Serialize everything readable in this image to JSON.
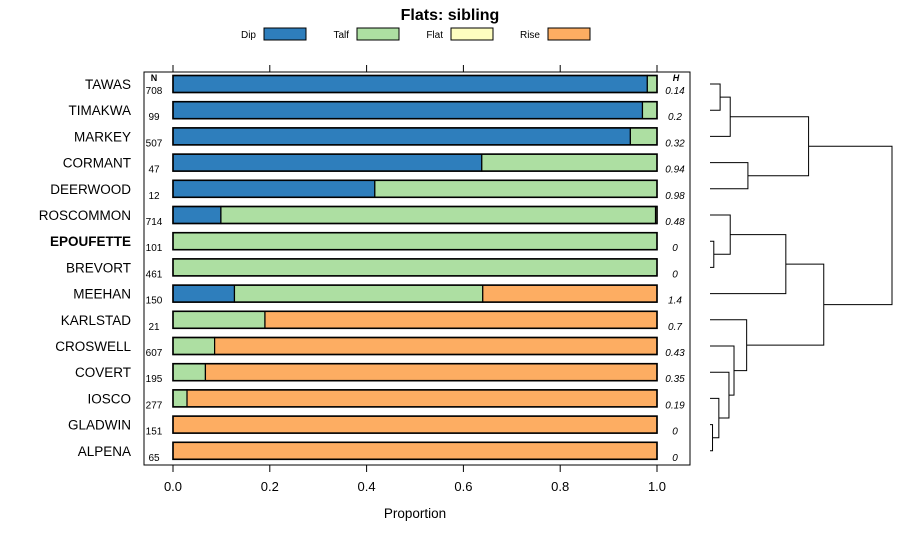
{
  "chart_data": {
    "type": "bar",
    "orientation": "horizontal",
    "stacked": true,
    "title": "Flats: sibling",
    "xlabel": "Proportion",
    "xlim": [
      0,
      1
    ],
    "x_ticks": [
      "0.0",
      "0.2",
      "0.4",
      "0.6",
      "0.8",
      "1.0"
    ],
    "n_header": "N",
    "h_header": "H",
    "legend": [
      {
        "name": "Dip",
        "color": "#2e7ebc"
      },
      {
        "name": "Talf",
        "color": "#addfa2"
      },
      {
        "name": "Flat",
        "color": "#fefec0"
      },
      {
        "name": "Rise",
        "color": "#fdad62"
      }
    ],
    "categories": [
      "TAWAS",
      "TIMAKWA",
      "MARKEY",
      "CORMANT",
      "DEERWOOD",
      "ROSCOMMON",
      "EPOUFETTE",
      "BREVORT",
      "MEEHAN",
      "KARLSTAD",
      "CROSWELL",
      "COVERT",
      "IOSCO",
      "GLADWIN",
      "ALPENA"
    ],
    "highlight": "EPOUFETTE",
    "n": [
      "708",
      "99",
      "507",
      "47",
      "12",
      "714",
      "101",
      "461",
      "150",
      "21",
      "607",
      "195",
      "277",
      "151",
      "65"
    ],
    "h": [
      "0.14",
      "0.2",
      "0.32",
      "0.94",
      "0.98",
      "0.48",
      "0",
      "0",
      "1.4",
      "0.7",
      "0.43",
      "0.35",
      "0.19",
      "0",
      "0"
    ],
    "series": [
      {
        "name": "Dip",
        "values": [
          0.98,
          0.97,
          0.945,
          0.638,
          0.417,
          0.099,
          0,
          0,
          0.127,
          0,
          0,
          0,
          0,
          0,
          0
        ]
      },
      {
        "name": "Talf",
        "values": [
          0.02,
          0.03,
          0.055,
          0.362,
          0.583,
          0.898,
          1.0,
          1.0,
          0.513,
          0.19,
          0.086,
          0.067,
          0.029,
          0,
          0
        ]
      },
      {
        "name": "Flat",
        "values": [
          0,
          0,
          0,
          0,
          0,
          0.003,
          0,
          0,
          0,
          0,
          0,
          0,
          0,
          0,
          0
        ]
      },
      {
        "name": "Rise",
        "values": [
          0,
          0,
          0,
          0,
          0,
          0,
          0,
          0,
          0.36,
          0.81,
          0.914,
          0.933,
          0.971,
          1.0,
          1.0
        ]
      }
    ],
    "dendrogram": {
      "merges": [
        [
          0,
          1,
          0.04
        ],
        [
          -1,
          2,
          0.08
        ],
        [
          3,
          4,
          0.15
        ],
        [
          -2,
          -3,
          0.39
        ],
        [
          6,
          7,
          0.015
        ],
        [
          5,
          -5,
          0.08
        ],
        [
          -6,
          8,
          0.3
        ],
        [
          13,
          14,
          0.01
        ],
        [
          12,
          -8,
          0.035
        ],
        [
          11,
          -9,
          0.075
        ],
        [
          10,
          -10,
          0.095
        ],
        [
          9,
          -11,
          0.145
        ],
        [
          -7,
          -12,
          0.45
        ],
        [
          -4,
          -13,
          0.72
        ]
      ],
      "max_height": 0.72
    }
  }
}
